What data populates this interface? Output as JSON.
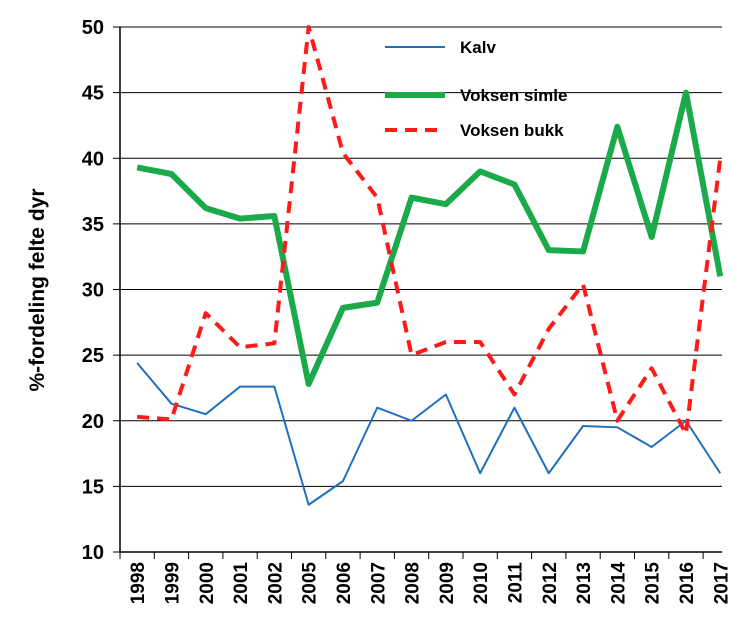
{
  "chart_data": {
    "type": "line",
    "y_label": "%-fordeling felte dyr",
    "categories": [
      "1998",
      "1999",
      "2000",
      "2001",
      "2002",
      "2005",
      "2006",
      "2007",
      "2008",
      "2009",
      "2010",
      "2011",
      "2012",
      "2013",
      "2014",
      "2015",
      "2016",
      "2017"
    ],
    "series": [
      {
        "name": "Kalv",
        "color": "#1f6fbf",
        "width": 2,
        "dash": false,
        "values": [
          24.4,
          21.3,
          20.5,
          22.6,
          22.6,
          13.6,
          15.4,
          21.0,
          20.0,
          22.0,
          16.0,
          21.0,
          16.0,
          19.6,
          19.5,
          18.0,
          20.0,
          16.0
        ]
      },
      {
        "name": "Voksen simle",
        "color": "#1aaa4a",
        "width": 6,
        "dash": false,
        "values": [
          39.3,
          38.8,
          36.2,
          35.4,
          35.6,
          22.8,
          28.6,
          29.0,
          37.0,
          36.5,
          39.0,
          38.0,
          33.0,
          32.9,
          42.4,
          34.0,
          45.0,
          31.0
        ]
      },
      {
        "name": "Voksen bukk",
        "color": "#ff1a1a",
        "width": 4,
        "dash": true,
        "values": [
          20.3,
          20.1,
          28.2,
          25.6,
          25.9,
          50.0,
          40.4,
          37.0,
          25.0,
          26.0,
          26.0,
          22.0,
          27.0,
          30.4,
          20.0,
          24.0,
          19.0,
          40.0
        ]
      }
    ],
    "ylim": [
      10,
      50
    ],
    "yticks": [
      10,
      15,
      20,
      25,
      30,
      35,
      40,
      45,
      50
    ],
    "grid": true
  }
}
